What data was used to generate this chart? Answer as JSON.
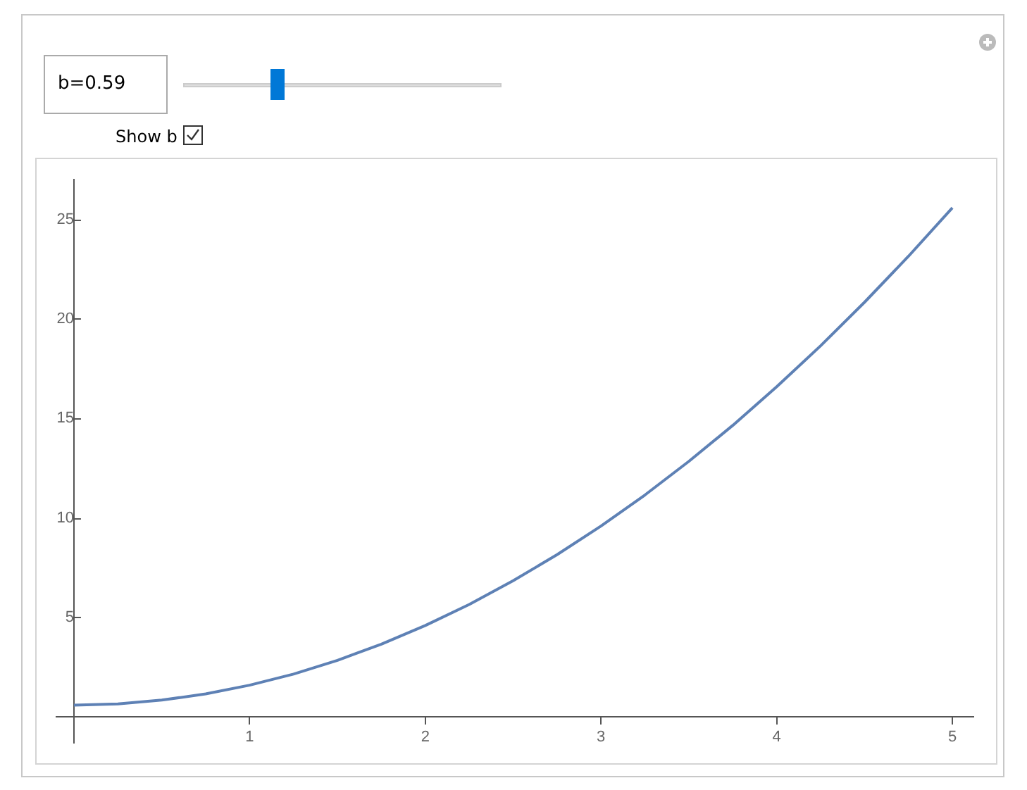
{
  "chart_data": {
    "type": "line",
    "x": [
      0,
      0.25,
      0.5,
      0.75,
      1,
      1.25,
      1.5,
      1.75,
      2,
      2.25,
      2.5,
      2.75,
      3,
      3.25,
      3.5,
      3.75,
      4,
      4.25,
      4.5,
      4.75,
      5
    ],
    "series": [
      {
        "color": "#5e81b5",
        "values": [
          0.59,
          0.65,
          0.84,
          1.15,
          1.59,
          2.15,
          2.84,
          3.65,
          4.59,
          5.65,
          6.84,
          8.15,
          9.59,
          11.15,
          12.84,
          14.65,
          16.59,
          18.65,
          20.84,
          23.15,
          25.59
        ]
      }
    ],
    "xlim": [
      -0.1,
      5.12
    ],
    "ylim": [
      -1.3,
      27
    ],
    "xticks": [
      1,
      2,
      3,
      4,
      5
    ],
    "yticks": [
      5,
      10,
      15,
      20,
      25
    ],
    "grid": false,
    "legend": false,
    "marker": "none",
    "line_style": "solid",
    "annotations": [
      "b=0.59",
      "Show b"
    ]
  }
}
